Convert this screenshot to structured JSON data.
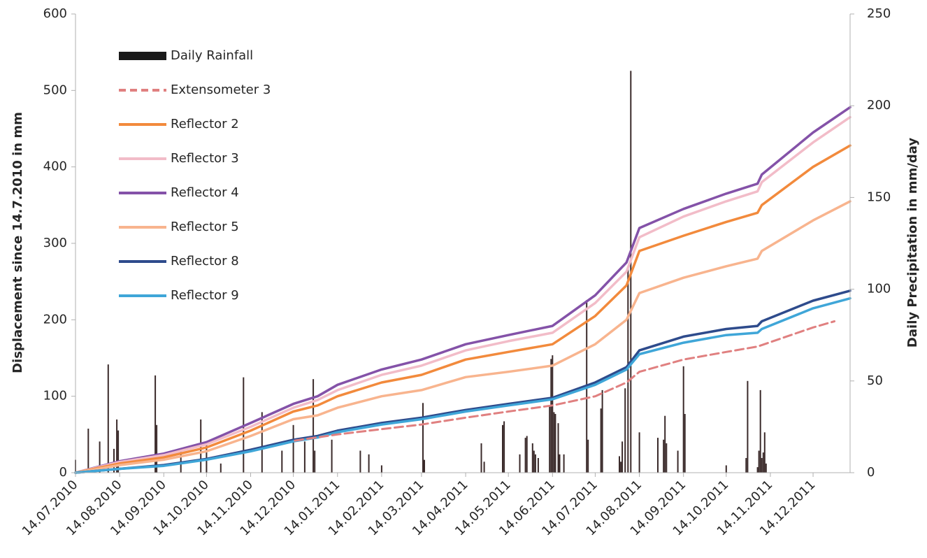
{
  "chart_data": {
    "type": "line",
    "title": "",
    "ylabel": "Displacement since 14.7.2010 in mm",
    "y2label": "Daily Precipitation in mm/day",
    "xlabel": "",
    "x_start": "14.07.2010",
    "x_end": "09.01.2012",
    "ylim": [
      0,
      600
    ],
    "y2lim": [
      0,
      250
    ],
    "yticks": [
      "0",
      "100",
      "200",
      "300",
      "400",
      "500",
      "600"
    ],
    "y2ticks": [
      "0",
      "50",
      "100",
      "150",
      "200",
      "250"
    ],
    "xticks": [
      "14.07.2010",
      "14.08.2010",
      "14.09.2010",
      "14.10.2010",
      "14.11.2010",
      "14.12.2010",
      "14.01.2011",
      "14.02.2011",
      "14.03.2011",
      "14.04.2011",
      "14.05.2011",
      "14.06.2011",
      "14.07.2011",
      "14.08.2011",
      "14.09.2011",
      "14.10.2011",
      "14.11.2011",
      "14.12.2011"
    ],
    "grid": false,
    "legend_position": "top-left",
    "legend": [
      {
        "name": "Daily Rainfall",
        "color": "#1a1a1a",
        "style": "bar"
      },
      {
        "name": "Extensometer 3",
        "color": "#e08080",
        "style": "dashed"
      },
      {
        "name": "Reflector 2",
        "color": "#f28a3c",
        "style": "solid"
      },
      {
        "name": "Reflector 3",
        "color": "#f2bcc8",
        "style": "solid"
      },
      {
        "name": "Reflector 4",
        "color": "#8452a8",
        "style": "solid"
      },
      {
        "name": "Reflector 5",
        "color": "#f8b48e",
        "style": "solid"
      },
      {
        "name": "Reflector 8",
        "color": "#2e4b8c",
        "style": "solid"
      },
      {
        "name": "Reflector 9",
        "color": "#3fa6d8",
        "style": "solid"
      }
    ],
    "series": [
      {
        "name": "Reflector 4",
        "color": "#8452a8",
        "dashed": false,
        "x": [
          "14.07.2010",
          "14.08.2010",
          "14.09.2010",
          "14.10.2010",
          "14.11.2010",
          "14.12.2010",
          "31.12.2010",
          "14.01.2011",
          "14.02.2011",
          "14.03.2011",
          "14.04.2011",
          "14.05.2011",
          "14.06.2011",
          "14.07.2011",
          "05.08.2011",
          "14.08.2011",
          "14.09.2011",
          "14.10.2011",
          "05.11.2011",
          "08.11.2011",
          "14.12.2011",
          "09.01.2012"
        ],
        "y": [
          0,
          15,
          25,
          40,
          65,
          90,
          100,
          115,
          135,
          148,
          168,
          180,
          192,
          232,
          275,
          320,
          345,
          365,
          378,
          390,
          445,
          478
        ]
      },
      {
        "name": "Reflector 3",
        "color": "#f2bcc8",
        "dashed": false,
        "x": [
          "14.07.2010",
          "14.08.2010",
          "14.09.2010",
          "14.10.2010",
          "14.11.2010",
          "14.12.2010",
          "31.12.2010",
          "14.01.2011",
          "14.02.2011",
          "14.03.2011",
          "14.04.2011",
          "14.05.2011",
          "14.06.2011",
          "14.07.2011",
          "05.08.2011",
          "14.08.2011",
          "14.09.2011",
          "14.10.2011",
          "05.11.2011",
          "08.11.2011",
          "14.12.2011",
          "09.01.2012"
        ],
        "y": [
          0,
          14,
          23,
          37,
          60,
          85,
          95,
          108,
          128,
          140,
          160,
          172,
          183,
          222,
          263,
          308,
          335,
          355,
          368,
          380,
          432,
          465
        ]
      },
      {
        "name": "Reflector 2",
        "color": "#f28a3c",
        "dashed": false,
        "x": [
          "14.07.2010",
          "14.08.2010",
          "14.09.2010",
          "14.10.2010",
          "14.11.2010",
          "14.12.2010",
          "31.12.2010",
          "14.01.2011",
          "14.02.2011",
          "14.03.2011",
          "14.04.2011",
          "14.05.2011",
          "14.06.2011",
          "14.07.2011",
          "05.08.2011",
          "14.08.2011",
          "14.09.2011",
          "14.10.2011",
          "05.11.2011",
          "08.11.2011",
          "14.12.2011",
          "09.01.2012"
        ],
        "y": [
          0,
          12,
          20,
          33,
          55,
          80,
          88,
          100,
          118,
          128,
          148,
          158,
          168,
          205,
          245,
          290,
          310,
          328,
          340,
          350,
          400,
          428
        ]
      },
      {
        "name": "Reflector 5",
        "color": "#f8b48e",
        "dashed": false,
        "x": [
          "14.07.2010",
          "14.08.2010",
          "14.09.2010",
          "14.10.2010",
          "14.11.2010",
          "14.12.2010",
          "31.12.2010",
          "14.01.2011",
          "14.02.2011",
          "14.03.2011",
          "14.04.2011",
          "14.05.2011",
          "14.06.2011",
          "14.07.2011",
          "05.08.2011",
          "14.08.2011",
          "14.09.2011",
          "14.10.2011",
          "05.11.2011",
          "08.11.2011",
          "14.12.2011",
          "09.01.2012"
        ],
        "y": [
          0,
          10,
          17,
          28,
          48,
          70,
          75,
          85,
          100,
          108,
          125,
          132,
          140,
          168,
          200,
          235,
          255,
          270,
          280,
          290,
          330,
          355
        ]
      },
      {
        "name": "Reflector 8",
        "color": "#2e4b8c",
        "dashed": false,
        "x": [
          "14.07.2010",
          "14.08.2010",
          "14.09.2010",
          "14.10.2010",
          "14.11.2010",
          "14.12.2010",
          "31.12.2010",
          "14.01.2011",
          "14.02.2011",
          "14.03.2011",
          "14.04.2011",
          "14.05.2011",
          "14.06.2011",
          "14.07.2011",
          "05.08.2011",
          "14.08.2011",
          "14.09.2011",
          "14.10.2011",
          "05.11.2011",
          "08.11.2011",
          "14.12.2011",
          "09.01.2012"
        ],
        "y": [
          0,
          5,
          10,
          18,
          30,
          43,
          48,
          55,
          65,
          72,
          82,
          90,
          98,
          118,
          138,
          160,
          178,
          188,
          192,
          198,
          225,
          238
        ]
      },
      {
        "name": "Reflector 9",
        "color": "#3fa6d8",
        "dashed": false,
        "x": [
          "14.07.2010",
          "14.08.2010",
          "14.09.2010",
          "14.10.2010",
          "14.11.2010",
          "14.12.2010",
          "31.12.2010",
          "14.01.2011",
          "14.02.2011",
          "14.03.2011",
          "14.04.2011",
          "14.05.2011",
          "14.06.2011",
          "14.07.2011",
          "05.08.2011",
          "14.08.2011",
          "14.09.2011",
          "14.10.2011",
          "05.11.2011",
          "08.11.2011",
          "14.12.2011",
          "09.01.2012"
        ],
        "y": [
          0,
          5,
          9,
          17,
          28,
          41,
          46,
          53,
          63,
          70,
          80,
          88,
          96,
          115,
          135,
          155,
          170,
          180,
          183,
          188,
          215,
          228
        ]
      },
      {
        "name": "Extensometer 3",
        "color": "#e08080",
        "dashed": true,
        "x": [
          "15.12.2010",
          "14.01.2011",
          "14.02.2011",
          "14.03.2011",
          "14.04.2011",
          "14.05.2011",
          "14.06.2011",
          "14.07.2011",
          "05.08.2011",
          "14.08.2011",
          "14.09.2011",
          "14.10.2011",
          "05.11.2011",
          "14.12.2011",
          "29.12.2011"
        ],
        "y": [
          42,
          50,
          57,
          63,
          72,
          80,
          88,
          100,
          118,
          132,
          148,
          158,
          165,
          190,
          198
        ]
      }
    ],
    "rainfall": {
      "name": "Daily Rainfall",
      "color": "#3a2a2a",
      "x": [
        "14.07.2010",
        "23.07.2010",
        "31.07.2010",
        "06.08.2010",
        "10.08.2010",
        "12.08.2010",
        "13.08.2010",
        "08.09.2010",
        "09.09.2010",
        "26.09.2010",
        "10.10.2010",
        "14.10.2010",
        "24.10.2010",
        "09.11.2010",
        "22.11.2010",
        "06.12.2010",
        "14.12.2010",
        "22.12.2010",
        "28.12.2010",
        "29.12.2010",
        "10.01.2011",
        "30.01.2011",
        "05.02.2011",
        "14.02.2011",
        "15.03.2011",
        "16.03.2011",
        "25.04.2011",
        "27.04.2011",
        "10.05.2011",
        "11.05.2011",
        "22.05.2011",
        "26.05.2011",
        "27.05.2011",
        "31.05.2011",
        "01.06.2011",
        "02.06.2011",
        "04.06.2011",
        "12.06.2011",
        "13.06.2011",
        "14.06.2011",
        "15.06.2011",
        "16.06.2011",
        "18.06.2011",
        "19.06.2011",
        "22.06.2011",
        "08.07.2011",
        "09.07.2011",
        "18.07.2011",
        "19.07.2011",
        "31.07.2011",
        "01.08.2011",
        "02.08.2011",
        "04.08.2011",
        "06.08.2011",
        "08.08.2011",
        "14.08.2011",
        "27.08.2011",
        "31.08.2011",
        "01.09.2011",
        "02.09.2011",
        "10.09.2011",
        "14.09.2011",
        "15.09.2011",
        "14.10.2011",
        "28.10.2011",
        "29.10.2011",
        "05.11.2011",
        "06.11.2011",
        "07.11.2011",
        "08.11.2011",
        "09.11.2011",
        "10.11.2011",
        "11.11.2011"
      ],
      "values": [
        7,
        24,
        17,
        59,
        13,
        29,
        23,
        53,
        26,
        13,
        29,
        15,
        5,
        52,
        33,
        12,
        26,
        17,
        51,
        12,
        18,
        12,
        10,
        4,
        38,
        7,
        16,
        6,
        26,
        28,
        10,
        19,
        20,
        16,
        12,
        10,
        8,
        36,
        62,
        64,
        33,
        32,
        27,
        10,
        10,
        94,
        18,
        35,
        45,
        9,
        6,
        17,
        46,
        112,
        219,
        22,
        19,
        18,
        31,
        16,
        12,
        58,
        32,
        4,
        8,
        50,
        3,
        12,
        45,
        8,
        11,
        22,
        5
      ]
    }
  }
}
